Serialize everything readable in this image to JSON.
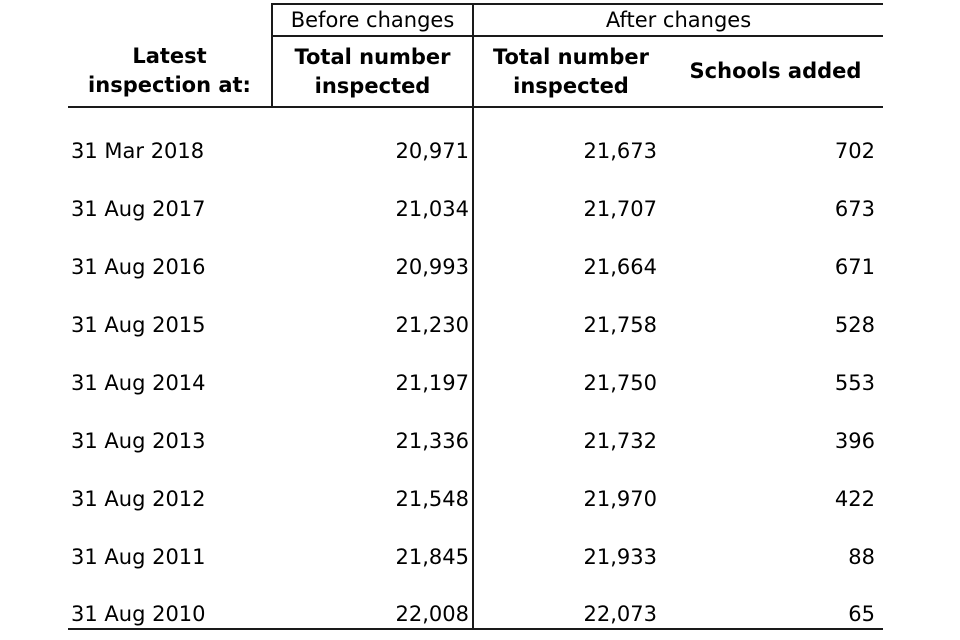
{
  "chart_data": {
    "type": "table",
    "column_groups": [
      {
        "label": "Before changes",
        "span": 1
      },
      {
        "label": "After changes",
        "span": 2
      }
    ],
    "columns": [
      "Latest\ninspection at:",
      "Total number\ninspected",
      "Total number\ninspected",
      "Schools added"
    ],
    "rows": [
      [
        "31 Mar 2018",
        "20,971",
        "21,673",
        "702"
      ],
      [
        "31 Aug 2017",
        "21,034",
        "21,707",
        "673"
      ],
      [
        "31 Aug 2016",
        "20,993",
        "21,664",
        "671"
      ],
      [
        "31 Aug 2015",
        "21,230",
        "21,758",
        "528"
      ],
      [
        "31 Aug 2014",
        "21,197",
        "21,750",
        "553"
      ],
      [
        "31 Aug 2013",
        "21,336",
        "21,732",
        "396"
      ],
      [
        "31 Aug 2012",
        "21,548",
        "21,970",
        "422"
      ],
      [
        "31 Aug 2011",
        "21,845",
        "21,933",
        "88"
      ],
      [
        "31 Aug 2010",
        "22,008",
        "22,073",
        "65"
      ]
    ],
    "layout": {
      "legend": "none",
      "grid": "partial-rules",
      "header_bold": true,
      "numbers_right_aligned": true
    },
    "colors": {
      "text": "#000000",
      "rule": "#1a1a1a",
      "background": "#ffffff"
    }
  }
}
